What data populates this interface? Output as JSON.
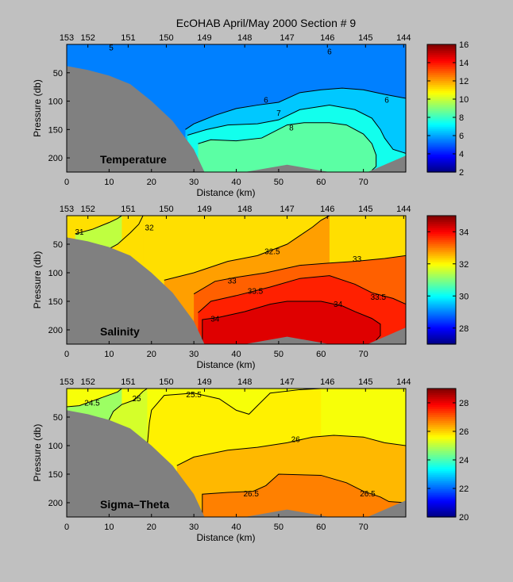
{
  "title": "EcOHAB   April/May 2000   Section # 9",
  "chart_data": [
    {
      "type": "heatmap",
      "panel_label": "Temperature",
      "xlabel": "Distance (km)",
      "ylabel": "Pressure (db)",
      "xlim": [
        0,
        80
      ],
      "ylim": [
        0,
        225
      ],
      "y_reversed": true,
      "x_ticks": [
        "0",
        "10",
        "20",
        "30",
        "40",
        "50",
        "60",
        "70"
      ],
      "y_ticks": [
        "50",
        "100",
        "150",
        "200"
      ],
      "station_ticks": [
        {
          "label": "153",
          "km": 0
        },
        {
          "label": "152",
          "km": 5
        },
        {
          "label": "151",
          "km": 14.5
        },
        {
          "label": "150",
          "km": 23.5
        },
        {
          "label": "149",
          "km": 32.5
        },
        {
          "label": "148",
          "km": 42
        },
        {
          "label": "147",
          "km": 52
        },
        {
          "label": "146",
          "km": 61.5
        },
        {
          "label": "145",
          "km": 70.5
        },
        {
          "label": "144",
          "km": 79.5
        }
      ],
      "colorbar": {
        "min": 2,
        "max": 16,
        "ticks": [
          "2",
          "4",
          "6",
          "8",
          "10",
          "12",
          "14",
          "16"
        ]
      },
      "fill_value": 5.5,
      "contours": [
        {
          "value": 6,
          "points": [
            [
              28,
              150
            ],
            [
              30,
              140
            ],
            [
              35,
              125
            ],
            [
              40,
              113
            ],
            [
              45,
              107
            ],
            [
              50,
              102
            ],
            [
              55,
              85
            ],
            [
              60,
              80
            ],
            [
              65,
              77
            ],
            [
              70,
              80
            ],
            [
              75,
              88
            ],
            [
              80,
              95
            ]
          ]
        },
        {
          "value": 7,
          "points": [
            [
              28.5,
              160
            ],
            [
              33,
              150
            ],
            [
              38,
              142
            ],
            [
              45,
              140
            ],
            [
              50,
              133
            ],
            [
              55,
              115
            ],
            [
              62,
              107
            ],
            [
              68,
              115
            ],
            [
              72,
              130
            ],
            [
              74,
              150
            ],
            [
              75,
              165
            ],
            [
              77,
              185
            ],
            [
              80,
              192
            ]
          ]
        },
        {
          "value": 8,
          "points": [
            [
              31,
              175
            ],
            [
              34,
              168
            ],
            [
              40,
              170
            ],
            [
              46,
              165
            ],
            [
              52,
              142
            ],
            [
              56,
              138
            ],
            [
              62,
              138
            ],
            [
              66,
              142
            ],
            [
              68,
              150
            ],
            [
              70,
              158
            ],
            [
              72,
              175
            ],
            [
              73,
              195
            ],
            [
              73,
              215
            ],
            [
              72,
              222
            ]
          ]
        }
      ],
      "contour_labels": [
        {
          "text": "5",
          "km": 10.5,
          "p": 5
        },
        {
          "text": "6",
          "km": 62,
          "p": 12
        },
        {
          "text": "6",
          "km": 47,
          "p": 97
        },
        {
          "text": "6",
          "km": 75.5,
          "p": 97
        },
        {
          "text": "7",
          "km": 50,
          "p": 120
        },
        {
          "text": "8",
          "km": 53,
          "p": 146
        }
      ]
    },
    {
      "type": "heatmap",
      "panel_label": "Salinity",
      "xlabel": "Distance (km)",
      "ylabel": "Pressure (db)",
      "xlim": [
        0,
        80
      ],
      "ylim": [
        0,
        225
      ],
      "y_reversed": true,
      "x_ticks": [
        "0",
        "10",
        "20",
        "30",
        "40",
        "50",
        "60",
        "70"
      ],
      "y_ticks": [
        "50",
        "100",
        "150",
        "200"
      ],
      "station_ticks": [
        {
          "label": "153",
          "km": 0
        },
        {
          "label": "152",
          "km": 5
        },
        {
          "label": "151",
          "km": 14.5
        },
        {
          "label": "150",
          "km": 23.5
        },
        {
          "label": "149",
          "km": 32.5
        },
        {
          "label": "148",
          "km": 42
        },
        {
          "label": "147",
          "km": 52
        },
        {
          "label": "146",
          "km": 61.5
        },
        {
          "label": "145",
          "km": 70.5
        },
        {
          "label": "144",
          "km": 79.5
        }
      ],
      "colorbar": {
        "min": 27,
        "max": 35,
        "ticks": [
          "28",
          "30",
          "32",
          "34"
        ]
      },
      "fill_value": 32.25,
      "contours": [
        {
          "value": 31,
          "points": [
            [
              2,
              32
            ],
            [
              6,
              24
            ],
            [
              10,
              12
            ],
            [
              12,
              5
            ],
            [
              13,
              0
            ]
          ]
        },
        {
          "value": 32,
          "points": [
            [
              9,
              62
            ],
            [
              12,
              50
            ],
            [
              15,
              30
            ],
            [
              17,
              15
            ],
            [
              18,
              0
            ]
          ]
        },
        {
          "value": 32.5,
          "points": [
            [
              23,
              113
            ],
            [
              30,
              100
            ],
            [
              38,
              80
            ],
            [
              45,
              70
            ],
            [
              52,
              50
            ],
            [
              55,
              35
            ],
            [
              58,
              20
            ],
            [
              60,
              8
            ],
            [
              62,
              0
            ]
          ]
        },
        {
          "value": 33,
          "points": [
            [
              30,
              137
            ],
            [
              35,
              115
            ],
            [
              40,
              108
            ],
            [
              47,
              100
            ],
            [
              55,
              87
            ],
            [
              62,
              83
            ],
            [
              68,
              80
            ],
            [
              75,
              75
            ],
            [
              80,
              70
            ]
          ]
        },
        {
          "value": 33.5,
          "points": [
            [
              31,
              170
            ],
            [
              34,
              150
            ],
            [
              40,
              140
            ],
            [
              48,
              125
            ],
            [
              55,
              110
            ],
            [
              62,
              105
            ],
            [
              68,
              120
            ],
            [
              72,
              135
            ],
            [
              77,
              145
            ],
            [
              80,
              155
            ]
          ]
        },
        {
          "value": 34,
          "points": [
            [
              32,
              222
            ],
            [
              32,
              182
            ],
            [
              36,
              178
            ],
            [
              42,
              168
            ],
            [
              48,
              155
            ],
            [
              52,
              150
            ],
            [
              60,
              150
            ],
            [
              65,
              158
            ],
            [
              68,
              168
            ],
            [
              72,
              180
            ],
            [
              74,
              190
            ],
            [
              74,
              210
            ],
            [
              73,
              218
            ]
          ]
        }
      ],
      "contour_labels": [
        {
          "text": "31",
          "km": 3,
          "p": 28
        },
        {
          "text": "32",
          "km": 19.5,
          "p": 20
        },
        {
          "text": "32.5",
          "km": 48.5,
          "p": 62
        },
        {
          "text": "33",
          "km": 68.5,
          "p": 75
        },
        {
          "text": "33",
          "km": 39,
          "p": 113
        },
        {
          "text": "33.5",
          "km": 44.5,
          "p": 131
        },
        {
          "text": "33.5",
          "km": 73.5,
          "p": 142
        },
        {
          "text": "34",
          "km": 64,
          "p": 154
        },
        {
          "text": "34",
          "km": 35,
          "p": 180
        }
      ]
    },
    {
      "type": "heatmap",
      "panel_label": "Sigma–Theta",
      "xlabel": "Distance (km)",
      "ylabel": "Pressure (db)",
      "xlim": [
        0,
        80
      ],
      "ylim": [
        0,
        225
      ],
      "y_reversed": true,
      "x_ticks": [
        "0",
        "10",
        "20",
        "30",
        "40",
        "50",
        "60",
        "70"
      ],
      "y_ticks": [
        "50",
        "100",
        "150",
        "200"
      ],
      "station_ticks": [
        {
          "label": "153",
          "km": 0
        },
        {
          "label": "152",
          "km": 5
        },
        {
          "label": "151",
          "km": 14.5
        },
        {
          "label": "150",
          "km": 23.5
        },
        {
          "label": "149",
          "km": 32.5
        },
        {
          "label": "148",
          "km": 42
        },
        {
          "label": "147",
          "km": 52
        },
        {
          "label": "146",
          "km": 61.5
        },
        {
          "label": "145",
          "km": 70.5
        },
        {
          "label": "144",
          "km": 79.5
        }
      ],
      "colorbar": {
        "min": 20,
        "max": 29,
        "ticks": [
          "20",
          "22",
          "24",
          "26",
          "28"
        ]
      },
      "fill_value": 25.55,
      "contours": [
        {
          "value": 24.5,
          "points": [
            [
              0,
              32
            ],
            [
              3,
              30
            ],
            [
              6,
              22
            ],
            [
              9,
              14
            ],
            [
              12,
              6
            ],
            [
              13,
              0
            ]
          ]
        },
        {
          "value": 25,
          "points": [
            [
              10,
              55
            ],
            [
              11,
              40
            ],
            [
              13,
              28
            ],
            [
              16,
              20
            ],
            [
              18,
              5
            ],
            [
              19,
              0
            ]
          ]
        },
        {
          "value": 25.5,
          "points": [
            [
              19,
              100
            ],
            [
              19.5,
              60
            ],
            [
              20,
              38
            ],
            [
              23,
              12
            ],
            [
              30,
              8
            ],
            [
              36,
              18
            ],
            [
              40,
              38
            ],
            [
              43,
              45
            ],
            [
              45,
              30
            ],
            [
              48,
              8
            ],
            [
              55,
              2
            ],
            [
              60,
              0
            ]
          ]
        },
        {
          "value": 26,
          "points": [
            [
              26,
              135
            ],
            [
              30,
              120
            ],
            [
              38,
              108
            ],
            [
              45,
              103
            ],
            [
              52,
              95
            ],
            [
              58,
              85
            ],
            [
              63,
              82
            ],
            [
              70,
              85
            ],
            [
              75,
              95
            ],
            [
              80,
              100
            ]
          ]
        },
        {
          "value": 26.5,
          "points": [
            [
              32,
              222
            ],
            [
              32,
              185
            ],
            [
              38,
              182
            ],
            [
              44,
              180
            ],
            [
              47,
              170
            ],
            [
              50,
              150
            ],
            [
              60,
              152
            ],
            [
              66,
              165
            ],
            [
              70,
              180
            ],
            [
              74,
              190
            ],
            [
              76,
              198
            ],
            [
              80,
              200
            ]
          ]
        }
      ],
      "contour_labels": [
        {
          "text": "24.5",
          "km": 6,
          "p": 24
        },
        {
          "text": "25",
          "km": 16.5,
          "p": 17
        },
        {
          "text": "25.5",
          "km": 30,
          "p": 10
        },
        {
          "text": "26",
          "km": 54,
          "p": 88
        },
        {
          "text": "26.5",
          "km": 43.5,
          "p": 183
        },
        {
          "text": "26.5",
          "km": 71,
          "p": 183
        }
      ]
    }
  ]
}
